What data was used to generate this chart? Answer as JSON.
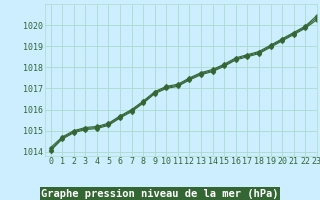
{
  "title": "Graphe pression niveau de la mer (hPa)",
  "bg_color": "#cceeff",
  "grid_color": "#aaddcc",
  "line_color": "#336633",
  "marker_color": "#336633",
  "xlim": [
    -0.5,
    23
  ],
  "ylim": [
    1013.8,
    1021.0
  ],
  "yticks": [
    1014,
    1015,
    1016,
    1017,
    1018,
    1019,
    1020
  ],
  "xticks": [
    0,
    1,
    2,
    3,
    4,
    5,
    6,
    7,
    8,
    9,
    10,
    11,
    12,
    13,
    14,
    15,
    16,
    17,
    18,
    19,
    20,
    21,
    22,
    23
  ],
  "line1_x": [
    0,
    1,
    2,
    3,
    4,
    5,
    6,
    7,
    8,
    9,
    10,
    11,
    12,
    13,
    14,
    15,
    16,
    17,
    18,
    19,
    20,
    21,
    22,
    23
  ],
  "line1_y": [
    1014.2,
    1014.7,
    1015.0,
    1015.15,
    1015.2,
    1015.35,
    1015.7,
    1016.0,
    1016.4,
    1016.85,
    1017.1,
    1017.2,
    1017.5,
    1017.75,
    1017.9,
    1018.15,
    1018.45,
    1018.6,
    1018.75,
    1019.05,
    1019.35,
    1019.65,
    1019.95,
    1020.45
  ],
  "line2_x": [
    0,
    1,
    2,
    3,
    4,
    5,
    6,
    7,
    8,
    9,
    10,
    11,
    12,
    13,
    14,
    15,
    16,
    17,
    18,
    19,
    20,
    21,
    22,
    23
  ],
  "line2_y": [
    1014.1,
    1014.65,
    1014.95,
    1015.1,
    1015.15,
    1015.3,
    1015.65,
    1015.95,
    1016.35,
    1016.8,
    1017.05,
    1017.15,
    1017.45,
    1017.7,
    1017.85,
    1018.1,
    1018.4,
    1018.55,
    1018.7,
    1019.0,
    1019.3,
    1019.6,
    1019.9,
    1020.35
  ],
  "line3_x": [
    0,
    1,
    2,
    3,
    4,
    5,
    6,
    7,
    8,
    9,
    10,
    11,
    12,
    13,
    14,
    15,
    16,
    17,
    18,
    19,
    20,
    21,
    22,
    23
  ],
  "line3_y": [
    1014.05,
    1014.6,
    1014.9,
    1015.05,
    1015.1,
    1015.25,
    1015.6,
    1015.9,
    1016.3,
    1016.75,
    1017.0,
    1017.1,
    1017.4,
    1017.65,
    1017.8,
    1018.05,
    1018.35,
    1018.5,
    1018.65,
    1018.95,
    1019.25,
    1019.55,
    1019.85,
    1020.25
  ],
  "title_fontsize": 7.5,
  "tick_fontsize": 6,
  "title_color": "white",
  "tick_color": "#336633",
  "title_bg": "#336633",
  "marker_size": 2.5,
  "line_width": 0.8
}
